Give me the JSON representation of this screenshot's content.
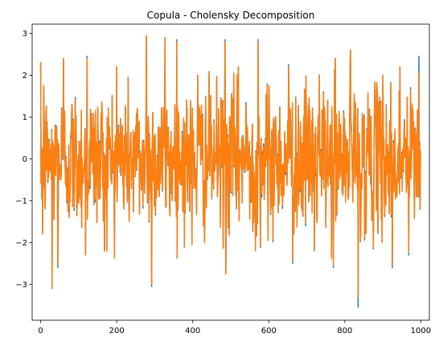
{
  "chart_data": {
    "type": "line",
    "title": "Copula - Cholensky Decomposition",
    "xlabel": "",
    "ylabel": "",
    "xlim": [
      -22.4,
      1022.4
    ],
    "ylim": [
      -3.86,
      3.22
    ],
    "x_ticks": [
      0,
      200,
      400,
      600,
      800,
      1000
    ],
    "x_tick_labels": [
      "0",
      "200",
      "400",
      "600",
      "800",
      "1000"
    ],
    "y_ticks": [
      -3,
      -2,
      -1,
      0,
      1,
      2,
      3
    ],
    "y_tick_labels": [
      "−3",
      "−2",
      "−1",
      "0",
      "1",
      "2",
      "3"
    ],
    "grid": false,
    "n_points": 1000,
    "series": [
      {
        "color": "#1f77b4",
        "min": -3.55,
        "max": 2.95,
        "extremes": [
          {
            "x": 5,
            "y": -1.8
          },
          {
            "x": 8,
            "y": 1.75
          },
          {
            "x": 30,
            "y": -3.1
          },
          {
            "x": 45,
            "y": -2.6
          },
          {
            "x": 60,
            "y": 2.4
          },
          {
            "x": 122,
            "y": 2.45
          },
          {
            "x": 118,
            "y": -2.3
          },
          {
            "x": 168,
            "y": -2.2
          },
          {
            "x": 200,
            "y": 2.2
          },
          {
            "x": 278,
            "y": 2.9
          },
          {
            "x": 292,
            "y": -3.05
          },
          {
            "x": 327,
            "y": 2.9
          },
          {
            "x": 358,
            "y": 2.85
          },
          {
            "x": 398,
            "y": -2.05
          },
          {
            "x": 413,
            "y": 2.0
          },
          {
            "x": 485,
            "y": 2.85
          },
          {
            "x": 487,
            "y": -2.75
          },
          {
            "x": 520,
            "y": 2.2
          },
          {
            "x": 572,
            "y": 2.85
          },
          {
            "x": 565,
            "y": -2.2
          },
          {
            "x": 598,
            "y": -1.95
          },
          {
            "x": 652,
            "y": 2.25
          },
          {
            "x": 663,
            "y": -2.5
          },
          {
            "x": 720,
            "y": -2.2
          },
          {
            "x": 733,
            "y": 2.0
          },
          {
            "x": 770,
            "y": -2.6
          },
          {
            "x": 775,
            "y": 2.4
          },
          {
            "x": 815,
            "y": 2.6
          },
          {
            "x": 835,
            "y": -3.55
          },
          {
            "x": 900,
            "y": 2.0
          },
          {
            "x": 925,
            "y": -2.6
          },
          {
            "x": 945,
            "y": 2.2
          },
          {
            "x": 968,
            "y": -2.3
          },
          {
            "x": 995,
            "y": 2.45
          },
          {
            "x": 1000,
            "y": 0.2
          }
        ]
      },
      {
        "color": "#ff7f0e",
        "min": -3.3,
        "max": 2.95,
        "extremes": [
          {
            "x": 5,
            "y": -1.8
          },
          {
            "x": 8,
            "y": 1.75
          },
          {
            "x": 30,
            "y": -3.1
          },
          {
            "x": 45,
            "y": -2.55
          },
          {
            "x": 60,
            "y": 2.4
          },
          {
            "x": 122,
            "y": 2.4
          },
          {
            "x": 118,
            "y": -2.3
          },
          {
            "x": 168,
            "y": -2.2
          },
          {
            "x": 200,
            "y": 2.2
          },
          {
            "x": 278,
            "y": 2.95
          },
          {
            "x": 292,
            "y": -3.0
          },
          {
            "x": 327,
            "y": 2.9
          },
          {
            "x": 358,
            "y": 2.8
          },
          {
            "x": 398,
            "y": -2.05
          },
          {
            "x": 413,
            "y": 2.0
          },
          {
            "x": 485,
            "y": 2.8
          },
          {
            "x": 487,
            "y": -2.75
          },
          {
            "x": 520,
            "y": 2.2
          },
          {
            "x": 572,
            "y": 2.8
          },
          {
            "x": 565,
            "y": -2.2
          },
          {
            "x": 598,
            "y": -1.95
          },
          {
            "x": 652,
            "y": 2.2
          },
          {
            "x": 663,
            "y": -2.45
          },
          {
            "x": 720,
            "y": -2.2
          },
          {
            "x": 733,
            "y": 2.0
          },
          {
            "x": 770,
            "y": -2.55
          },
          {
            "x": 775,
            "y": 2.4
          },
          {
            "x": 815,
            "y": 2.6
          },
          {
            "x": 835,
            "y": -3.3
          },
          {
            "x": 900,
            "y": 2.0
          },
          {
            "x": 925,
            "y": -2.55
          },
          {
            "x": 945,
            "y": 2.2
          },
          {
            "x": 968,
            "y": -2.25
          },
          {
            "x": 995,
            "y": 2.05
          },
          {
            "x": 1000,
            "y": 0.2
          }
        ]
      }
    ]
  }
}
